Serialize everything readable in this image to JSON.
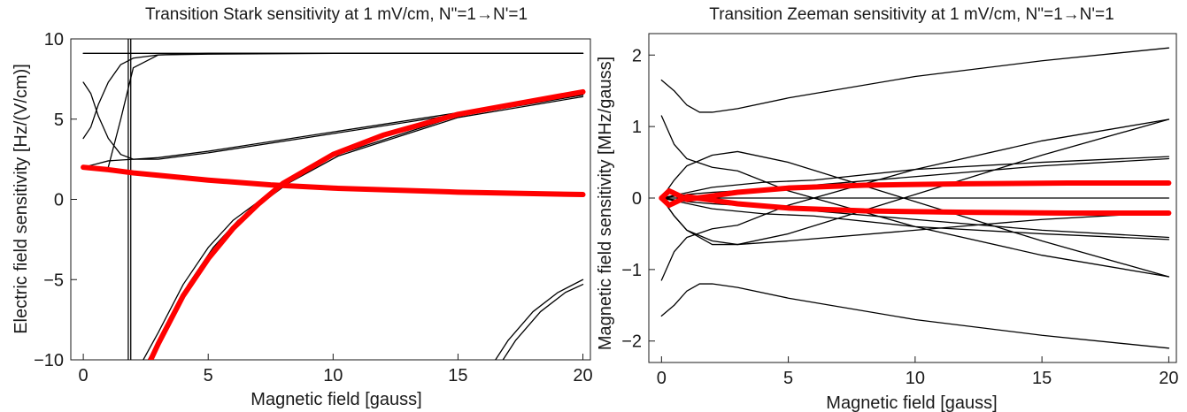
{
  "chart_data": [
    {
      "type": "line",
      "title": "Transition Stark sensitivity at 1 mV/cm, N\"=1→N'=1",
      "xlabel": "Magnetic field [gauss]",
      "ylabel": "Electric field sensitivity [Hz/(V/cm)]",
      "xlim": [
        -0.5,
        20.3
      ],
      "ylim": [
        -10,
        10
      ],
      "xticks": [
        0,
        5,
        10,
        15,
        20
      ],
      "yticks": [
        -10,
        -5,
        0,
        5,
        10
      ],
      "grid": false,
      "colors": {
        "thin": "#000000",
        "highlight": "#ff0000"
      },
      "series": [
        {
          "style": "thin",
          "x": [
            0,
            0.3,
            0.6,
            1,
            1.5,
            2,
            3,
            5,
            10,
            20
          ],
          "values": [
            7.3,
            6.6,
            5.2,
            3.8,
            2.8,
            2.5,
            2.5,
            2.9,
            4.1,
            6.5
          ]
        },
        {
          "style": "thin",
          "x": [
            0,
            0.3,
            0.6,
            1,
            1.5,
            2,
            3,
            5,
            10,
            20
          ],
          "values": [
            3.8,
            4.5,
            5.9,
            7.3,
            8.4,
            8.8,
            9.0,
            9.05,
            9.1,
            9.1
          ]
        },
        {
          "style": "thin",
          "x": [
            0,
            0.5,
            1,
            1.5,
            2,
            3,
            5,
            10,
            20
          ],
          "values": [
            2.0,
            2.2,
            2.4,
            2.45,
            2.5,
            2.6,
            3.0,
            4.2,
            6.6
          ]
        },
        {
          "style": "thin",
          "x": [
            1,
            1.5,
            2,
            3,
            5,
            10,
            20
          ],
          "values": [
            2.0,
            5.0,
            8.2,
            9.0,
            9.1,
            9.1,
            9.1
          ]
        },
        {
          "style": "thin",
          "x": [
            0,
            20
          ],
          "values": [
            9.1,
            9.1
          ]
        },
        {
          "style": "thin",
          "x": [
            1.8,
            1.8
          ],
          "values": [
            10,
            -10
          ]
        },
        {
          "style": "thin",
          "x": [
            1.9,
            1.9
          ],
          "values": [
            10,
            -10
          ]
        },
        {
          "style": "thin",
          "x": [
            2.4,
            3,
            4,
            5,
            6,
            8,
            10,
            15,
            20
          ],
          "values": [
            -10,
            -8.3,
            -5.3,
            -3.0,
            -1.3,
            1.0,
            2.7,
            5.2,
            6.5
          ]
        },
        {
          "style": "thin",
          "x": [
            2.6,
            3.2,
            4.2,
            5.2,
            6.2,
            8.2,
            10.2,
            15,
            20
          ],
          "values": [
            -10,
            -8.3,
            -5.3,
            -3.0,
            -1.3,
            1.0,
            2.7,
            5.1,
            6.4
          ]
        },
        {
          "style": "thin",
          "x": [
            16.5,
            17,
            18,
            19,
            20
          ],
          "values": [
            -10,
            -8.8,
            -7.0,
            -5.8,
            -5.0
          ]
        },
        {
          "style": "thin",
          "x": [
            16.8,
            17.3,
            18.3,
            19.3,
            20
          ],
          "values": [
            -10,
            -8.8,
            -7.0,
            -5.8,
            -5.3
          ]
        },
        {
          "style": "highlight",
          "x": [
            0,
            1,
            2,
            3,
            5,
            7.5,
            10,
            15,
            20
          ],
          "values": [
            2.0,
            1.85,
            1.65,
            1.5,
            1.2,
            0.9,
            0.7,
            0.45,
            0.3
          ]
        },
        {
          "style": "highlight",
          "x": [
            2.7,
            3,
            4,
            5,
            6,
            7,
            8,
            10,
            12,
            15,
            20
          ],
          "values": [
            -10,
            -9.0,
            -6.0,
            -3.7,
            -1.8,
            -0.3,
            1.0,
            2.8,
            4.0,
            5.3,
            6.7
          ]
        }
      ]
    },
    {
      "type": "line",
      "title": "Transition Zeeman sensitivity at 1 mV/cm, N\"=1→N'=1",
      "xlabel": "Magnetic field [gauss]",
      "ylabel": "Magnetic field sensitivity [MHz/gauss]",
      "xlim": [
        -0.5,
        20.3
      ],
      "ylim": [
        -2.3,
        2.3
      ],
      "xticks": [
        0,
        5,
        10,
        15,
        20
      ],
      "yticks": [
        -2,
        -1,
        0,
        1,
        2
      ],
      "grid": false,
      "colors": {
        "thin": "#000000",
        "highlight": "#ff0000"
      },
      "series": [
        {
          "style": "thin",
          "x": [
            0,
            0.5,
            1,
            1.5,
            2,
            3,
            5,
            10,
            15,
            20
          ],
          "values": [
            1.65,
            1.5,
            1.3,
            1.2,
            1.2,
            1.25,
            1.4,
            1.7,
            1.92,
            2.1
          ]
        },
        {
          "style": "thin",
          "x": [
            0,
            0.5,
            1,
            1.5,
            2,
            3,
            5,
            10,
            15,
            20
          ],
          "values": [
            -1.65,
            -1.5,
            -1.3,
            -1.2,
            -1.2,
            -1.25,
            -1.4,
            -1.7,
            -1.92,
            -2.1
          ]
        },
        {
          "style": "thin",
          "x": [
            0,
            0.5,
            1,
            2,
            3,
            5,
            10,
            15,
            20
          ],
          "values": [
            1.15,
            0.75,
            0.55,
            0.43,
            0.38,
            0.1,
            -0.4,
            -0.8,
            -1.1
          ]
        },
        {
          "style": "thin",
          "x": [
            0,
            0.5,
            1,
            2,
            3,
            5,
            10,
            15,
            20
          ],
          "values": [
            -1.15,
            -0.75,
            -0.55,
            -0.43,
            -0.38,
            -0.1,
            0.4,
            0.8,
            1.1
          ]
        },
        {
          "style": "thin",
          "x": [
            0,
            0.3,
            0.5,
            1,
            2,
            3,
            5,
            10,
            15,
            20
          ],
          "values": [
            0,
            0.15,
            0.25,
            0.45,
            0.6,
            0.65,
            0.5,
            -0.05,
            -0.6,
            -1.1
          ]
        },
        {
          "style": "thin",
          "x": [
            0,
            0.3,
            0.5,
            1,
            2,
            3,
            5,
            10,
            15,
            20
          ],
          "values": [
            0,
            -0.15,
            -0.25,
            -0.45,
            -0.6,
            -0.65,
            -0.5,
            0.05,
            0.6,
            1.1
          ]
        },
        {
          "style": "thin",
          "x": [
            0,
            0.5,
            1,
            2,
            3,
            5,
            10,
            15,
            20
          ],
          "values": [
            0,
            -0.25,
            -0.45,
            -0.65,
            -0.65,
            -0.6,
            -0.45,
            -0.3,
            -0.2
          ]
        },
        {
          "style": "thin",
          "x": [
            0,
            1,
            2,
            3,
            5,
            10,
            15,
            20
          ],
          "values": [
            0,
            0.05,
            0.08,
            0.1,
            0.15,
            0.3,
            0.45,
            0.55
          ]
        },
        {
          "style": "thin",
          "x": [
            0,
            1,
            2,
            3,
            5,
            10,
            15,
            20
          ],
          "values": [
            0,
            -0.05,
            -0.08,
            -0.1,
            -0.15,
            -0.3,
            -0.45,
            -0.55
          ]
        },
        {
          "style": "thin",
          "x": [
            0,
            2,
            4,
            6,
            10,
            15,
            20
          ],
          "values": [
            0,
            0.15,
            0.22,
            0.25,
            0.4,
            0.5,
            0.58
          ]
        },
        {
          "style": "thin",
          "x": [
            0,
            2,
            4,
            6,
            10,
            15,
            20
          ],
          "values": [
            0,
            -0.15,
            -0.22,
            -0.25,
            -0.4,
            -0.5,
            -0.58
          ]
        },
        {
          "style": "thin",
          "x": [
            0,
            20
          ],
          "values": [
            0,
            0
          ]
        },
        {
          "style": "highlight",
          "x": [
            0,
            0.3,
            0.6,
            1,
            2,
            3,
            5,
            8,
            12,
            16,
            20
          ],
          "values": [
            0,
            0.1,
            0.05,
            -0.02,
            0.03,
            0.08,
            0.14,
            0.18,
            0.2,
            0.21,
            0.21
          ]
        },
        {
          "style": "highlight",
          "x": [
            0,
            0.3,
            0.6,
            1,
            2,
            3,
            5,
            8,
            12,
            16,
            20
          ],
          "values": [
            0,
            -0.1,
            -0.05,
            0.02,
            -0.03,
            -0.08,
            -0.14,
            -0.18,
            -0.2,
            -0.21,
            -0.21
          ]
        }
      ]
    }
  ]
}
